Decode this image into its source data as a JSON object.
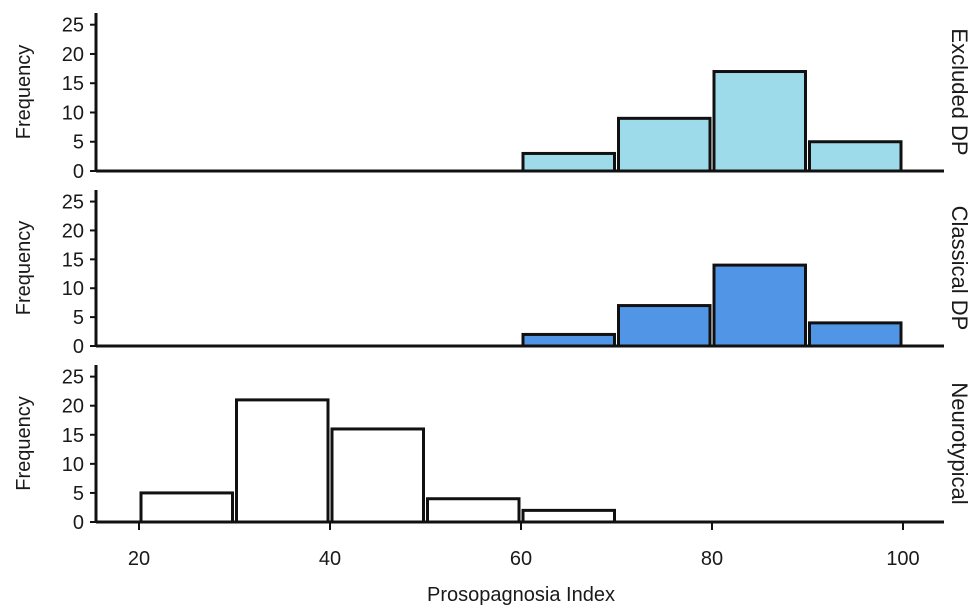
{
  "chart_data": {
    "type": "bar",
    "layout": "histogram facets stacked vertically, shared x axis",
    "xlabel": "Prosopagnosia Index",
    "xticks": [
      20,
      40,
      60,
      80,
      100
    ],
    "xlim": [
      15,
      105
    ],
    "bin_width": 10,
    "panels": [
      {
        "label": "Excluded DP",
        "ylabel": "Frequency",
        "yticks": [
          0,
          5,
          10,
          15,
          20,
          25
        ],
        "ylim": [
          0,
          27
        ],
        "color": "#9ddbea",
        "bins": [
          {
            "start": 60,
            "end": 70,
            "count": 3
          },
          {
            "start": 70,
            "end": 80,
            "count": 9
          },
          {
            "start": 80,
            "end": 90,
            "count": 17
          },
          {
            "start": 90,
            "end": 100,
            "count": 5
          }
        ]
      },
      {
        "label": "Classical DP",
        "ylabel": "Frequency",
        "yticks": [
          0,
          5,
          10,
          15,
          20,
          25
        ],
        "ylim": [
          0,
          27
        ],
        "color": "#5195e6",
        "bins": [
          {
            "start": 60,
            "end": 70,
            "count": 2
          },
          {
            "start": 70,
            "end": 80,
            "count": 7
          },
          {
            "start": 80,
            "end": 90,
            "count": 14
          },
          {
            "start": 90,
            "end": 100,
            "count": 4
          }
        ]
      },
      {
        "label": "Neurotypical",
        "ylabel": "Frequency",
        "yticks": [
          0,
          5,
          10,
          15,
          20,
          25
        ],
        "ylim": [
          0,
          27
        ],
        "color": "#ffffff",
        "bins": [
          {
            "start": 20,
            "end": 30,
            "count": 5
          },
          {
            "start": 30,
            "end": 40,
            "count": 21
          },
          {
            "start": 40,
            "end": 50,
            "count": 16
          },
          {
            "start": 50,
            "end": 60,
            "count": 4
          },
          {
            "start": 60,
            "end": 70,
            "count": 2
          }
        ]
      }
    ]
  }
}
